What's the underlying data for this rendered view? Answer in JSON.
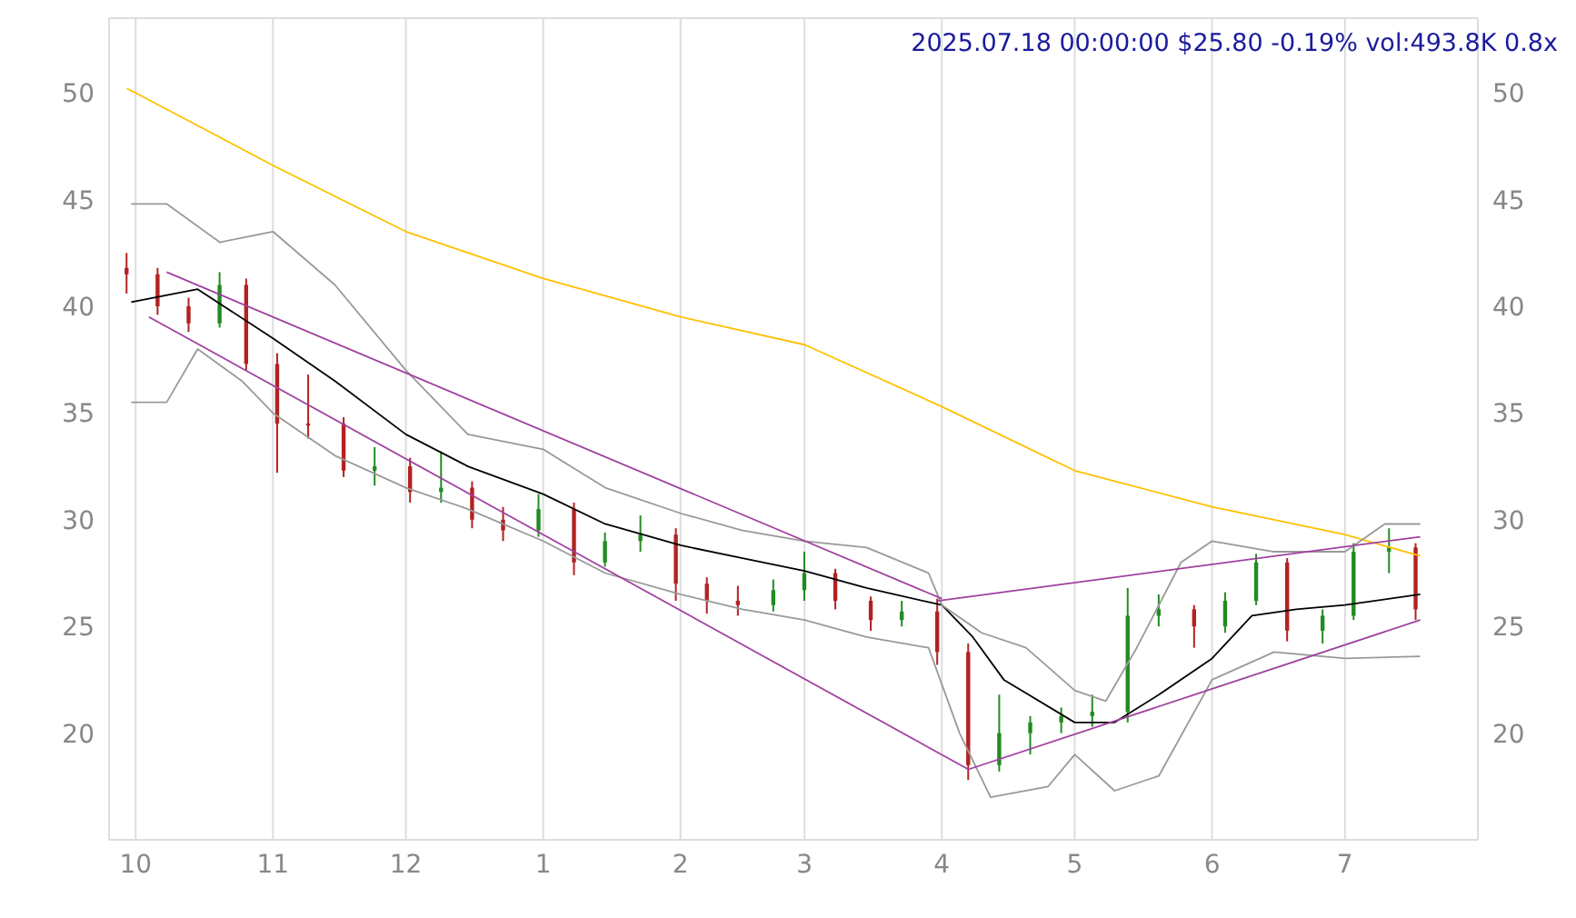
{
  "chart_data": {
    "type": "candlestick",
    "title": "2025.07.18 00:00:00 $25.80 -0.19% vol:493.8K 0.8x",
    "x": [
      "2024-09-29",
      "2024-10-06",
      "2024-10-13",
      "2024-10-20",
      "2024-10-26",
      "2024-11-02",
      "2024-11-09",
      "2024-11-17",
      "2024-11-24",
      "2024-12-02",
      "2024-12-09",
      "2024-12-16",
      "2024-12-23",
      "2024-12-31",
      "2025-01-08",
      "2025-01-15",
      "2025-01-23",
      "2025-01-31",
      "2025-02-07",
      "2025-02-14",
      "2025-02-22",
      "2025-03-01",
      "2025-03-08",
      "2025-03-16",
      "2025-03-23",
      "2025-03-31",
      "2025-04-07",
      "2025-04-14",
      "2025-04-21",
      "2025-04-28",
      "2025-05-05",
      "2025-05-13",
      "2025-05-20",
      "2025-05-28",
      "2025-06-04",
      "2025-06-11",
      "2025-06-18",
      "2025-06-26",
      "2025-07-03",
      "2025-07-11",
      "2025-07-17"
    ],
    "ohlc": [
      [
        41.8,
        42.5,
        40.6,
        41.5
      ],
      [
        41.5,
        41.8,
        39.6,
        40.0
      ],
      [
        40.0,
        40.4,
        38.8,
        39.2
      ],
      [
        39.2,
        41.6,
        39.0,
        41.0
      ],
      [
        41.0,
        41.3,
        37.0,
        37.3
      ],
      [
        37.3,
        37.8,
        32.2,
        34.5
      ],
      [
        34.5,
        36.8,
        33.8,
        34.5
      ],
      [
        34.5,
        34.8,
        32.0,
        32.3
      ],
      [
        32.3,
        33.4,
        31.6,
        32.5
      ],
      [
        32.5,
        32.9,
        30.8,
        31.3
      ],
      [
        31.3,
        33.2,
        30.8,
        31.5
      ],
      [
        31.5,
        31.8,
        29.6,
        30.0
      ],
      [
        30.0,
        30.6,
        29.0,
        29.5
      ],
      [
        29.5,
        31.2,
        29.2,
        30.5
      ],
      [
        30.5,
        30.8,
        27.4,
        28.0
      ],
      [
        28.0,
        29.4,
        27.8,
        29.0
      ],
      [
        29.0,
        30.2,
        28.5,
        29.3
      ],
      [
        29.3,
        29.6,
        26.2,
        27.0
      ],
      [
        27.0,
        27.3,
        25.6,
        26.2
      ],
      [
        26.2,
        26.9,
        25.5,
        26.0
      ],
      [
        26.0,
        27.2,
        25.7,
        26.7
      ],
      [
        26.7,
        28.5,
        26.2,
        27.5
      ],
      [
        27.5,
        27.7,
        25.8,
        26.2
      ],
      [
        26.2,
        26.4,
        24.8,
        25.3
      ],
      [
        25.3,
        26.2,
        25.0,
        25.7
      ],
      [
        25.7,
        26.3,
        23.2,
        23.8
      ],
      [
        23.8,
        24.2,
        17.8,
        18.5
      ],
      [
        18.5,
        21.8,
        18.2,
        20.0
      ],
      [
        20.0,
        20.8,
        19.0,
        20.5
      ],
      [
        20.5,
        21.2,
        20.0,
        20.8
      ],
      [
        20.8,
        21.8,
        20.3,
        21.0
      ],
      [
        21.0,
        26.8,
        20.5,
        25.5
      ],
      [
        25.5,
        26.5,
        25.0,
        25.8
      ],
      [
        25.8,
        26.0,
        24.0,
        25.0
      ],
      [
        25.0,
        26.6,
        24.7,
        26.2
      ],
      [
        26.2,
        28.4,
        26.0,
        28.0
      ],
      [
        28.0,
        28.2,
        24.3,
        24.8
      ],
      [
        24.8,
        25.8,
        24.2,
        25.5
      ],
      [
        25.5,
        28.9,
        25.3,
        28.5
      ],
      [
        28.5,
        29.6,
        27.5,
        28.7
      ],
      [
        28.7,
        28.9,
        25.3,
        25.8
      ]
    ],
    "colors": [
      "#b22222",
      "#b22222",
      "#b22222",
      "#228b22",
      "#b22222",
      "#b22222",
      "#b22222",
      "#b22222",
      "#228b22",
      "#b22222",
      "#228b22",
      "#b22222",
      "#b22222",
      "#228b22",
      "#b22222",
      "#228b22",
      "#228b22",
      "#b22222",
      "#b22222",
      "#b22222",
      "#228b22",
      "#228b22",
      "#b22222",
      "#b22222",
      "#228b22",
      "#b22222",
      "#b22222",
      "#228b22",
      "#228b22",
      "#228b22",
      "#228b22",
      "#228b22",
      "#228b22",
      "#b22222",
      "#228b22",
      "#228b22",
      "#b22222",
      "#228b22",
      "#228b22",
      "#228b22",
      "#b22222"
    ],
    "series": [
      {
        "type": "line",
        "color": "#ffc000",
        "x": [
          "2024-09-29",
          "2024-10-01",
          "2024-11-01",
          "2024-12-01",
          "2025-01-01",
          "2025-02-01",
          "2025-03-01",
          "2025-04-01",
          "2025-05-01",
          "2025-06-01",
          "2025-07-01",
          "2025-07-18"
        ],
        "values": [
          50.2,
          50.0,
          46.6,
          43.5,
          41.3,
          39.5,
          38.2,
          35.3,
          32.3,
          30.6,
          29.3,
          28.3
        ]
      },
      {
        "type": "line",
        "color": "#000000",
        "x": [
          "2024-09-30",
          "2024-10-15",
          "2024-11-01",
          "2024-11-15",
          "2024-12-01",
          "2024-12-15",
          "2025-01-01",
          "2025-01-15",
          "2025-02-01",
          "2025-02-15",
          "2025-03-01",
          "2025-03-15",
          "2025-04-01",
          "2025-04-08",
          "2025-04-15",
          "2025-05-01",
          "2025-05-10",
          "2025-05-20",
          "2025-06-01",
          "2025-06-10",
          "2025-06-20",
          "2025-07-01",
          "2025-07-18"
        ],
        "values": [
          40.2,
          40.8,
          38.5,
          36.5,
          34,
          32.5,
          31.2,
          29.8,
          28.8,
          28.2,
          27.6,
          26.8,
          26,
          24.5,
          22.5,
          20.5,
          20.5,
          21.8,
          23.5,
          25.5,
          25.8,
          26,
          26.5
        ]
      },
      {
        "type": "line",
        "color": "#999999",
        "x": [
          "2024-09-30",
          "2024-10-08",
          "2024-10-20",
          "2024-11-01",
          "2024-11-15",
          "2024-12-01",
          "2024-12-15",
          "2025-01-01",
          "2025-01-15",
          "2025-02-01",
          "2025-02-15",
          "2025-03-01",
          "2025-03-15",
          "2025-03-29",
          "2025-04-01",
          "2025-04-10",
          "2025-04-20",
          "2025-05-01",
          "2025-05-08",
          "2025-05-15",
          "2025-05-25",
          "2025-06-01",
          "2025-06-15",
          "2025-07-01",
          "2025-07-10",
          "2025-07-18"
        ],
        "values": [
          44.8,
          44.8,
          43,
          43.5,
          41,
          37,
          34,
          33.3,
          31.5,
          30.3,
          29.5,
          29,
          28.7,
          27.5,
          26,
          24.7,
          24,
          22,
          21.5,
          24,
          28,
          29,
          28.5,
          28.5,
          29.8,
          29.8
        ]
      },
      {
        "type": "line",
        "color": "#999999",
        "x": [
          "2024-09-30",
          "2024-10-08",
          "2024-10-15",
          "2024-10-25",
          "2024-11-01",
          "2024-11-15",
          "2024-12-01",
          "2024-12-15",
          "2025-01-01",
          "2025-01-15",
          "2025-02-01",
          "2025-02-15",
          "2025-03-01",
          "2025-03-15",
          "2025-03-29",
          "2025-04-05",
          "2025-04-12",
          "2025-04-25",
          "2025-05-01",
          "2025-05-10",
          "2025-05-20",
          "2025-06-01",
          "2025-06-15",
          "2025-07-01",
          "2025-07-18"
        ],
        "values": [
          35.5,
          35.5,
          38,
          36.5,
          35,
          33,
          31.5,
          30.5,
          29,
          27.5,
          26.5,
          25.8,
          25.3,
          24.5,
          24,
          20,
          17,
          17.5,
          19,
          17.3,
          18,
          22.5,
          23.8,
          23.5,
          23.6
        ]
      },
      {
        "type": "line",
        "color": "#a040a0",
        "x": [
          "2024-10-08",
          "2025-04-01"
        ],
        "values": [
          41.6,
          26.3
        ]
      },
      {
        "type": "line",
        "color": "#a040a0",
        "x": [
          "2024-10-04",
          "2025-04-07"
        ],
        "values": [
          39.5,
          18.3
        ]
      },
      {
        "type": "line",
        "color": "#a040a0",
        "x": [
          "2025-03-31",
          "2025-07-18"
        ],
        "values": [
          26.2,
          29.2
        ]
      },
      {
        "type": "line",
        "color": "#a040a0",
        "x": [
          "2025-04-07",
          "2025-07-18"
        ],
        "values": [
          18.3,
          25.3
        ]
      }
    ],
    "xlim": [
      "2024-09-25",
      "2025-07-31"
    ],
    "xticks": [
      {
        "value": "2024-10-01",
        "label": "10"
      },
      {
        "value": "2024-11-01",
        "label": "11"
      },
      {
        "value": "2024-12-01",
        "label": "12"
      },
      {
        "value": "2025-01-01",
        "label": "1"
      },
      {
        "value": "2025-02-01",
        "label": "2"
      },
      {
        "value": "2025-03-01",
        "label": "3"
      },
      {
        "value": "2025-04-01",
        "label": "4"
      },
      {
        "value": "2025-05-01",
        "label": "5"
      },
      {
        "value": "2025-06-01",
        "label": "6"
      },
      {
        "value": "2025-07-01",
        "label": "7"
      }
    ],
    "ylim": [
      15,
      53.5
    ],
    "yticks": [
      20,
      25,
      30,
      35,
      40,
      45,
      50
    ],
    "y2lim": [
      15,
      53.5
    ],
    "y2ticks": [
      20,
      25,
      30,
      35,
      40,
      45,
      50
    ],
    "grid": true
  }
}
